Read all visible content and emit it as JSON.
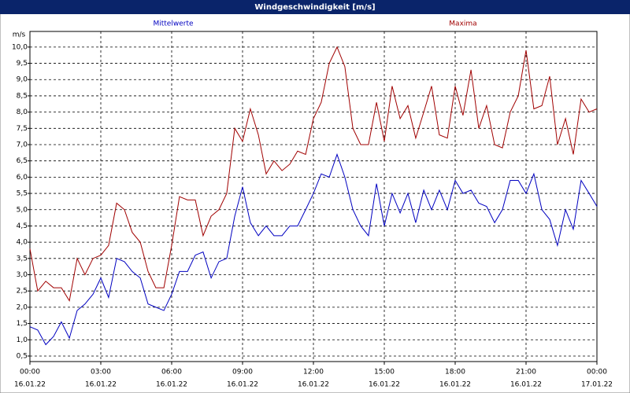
{
  "chart_data": {
    "type": "line",
    "title": "Windgeschwindigkeit [m/s]",
    "y_label": "m/s",
    "grid": true,
    "xlim": [
      0,
      24
    ],
    "xticks": [
      {
        "value": 0,
        "label": "00:00"
      },
      {
        "value": 3,
        "label": "03:00"
      },
      {
        "value": 6,
        "label": "06:00"
      },
      {
        "value": 9,
        "label": "09:00"
      },
      {
        "value": 12,
        "label": "12:00"
      },
      {
        "value": 15,
        "label": "15:00"
      },
      {
        "value": 18,
        "label": "18:00"
      },
      {
        "value": 21,
        "label": "21:00"
      },
      {
        "value": 24,
        "label": "00:00"
      }
    ],
    "xtick_dates": [
      "16.01.22",
      "16.01.22",
      "16.01.22",
      "16.01.22",
      "16.01.22",
      "16.01.22",
      "16.01.22",
      "16.01.22",
      "17.01.22"
    ],
    "ylim": [
      0.33,
      10.48
    ],
    "yticks": [
      {
        "value": 0.5,
        "label": "0,5"
      },
      {
        "value": 1.0,
        "label": "1,0"
      },
      {
        "value": 1.5,
        "label": "1,5"
      },
      {
        "value": 2.0,
        "label": "2,0"
      },
      {
        "value": 2.5,
        "label": "2,5"
      },
      {
        "value": 3.0,
        "label": "3,0"
      },
      {
        "value": 3.5,
        "label": "3,5"
      },
      {
        "value": 4.0,
        "label": "4,0"
      },
      {
        "value": 4.5,
        "label": "4,5"
      },
      {
        "value": 5.0,
        "label": "5,0"
      },
      {
        "value": 5.5,
        "label": "5,5"
      },
      {
        "value": 6.0,
        "label": "6,0"
      },
      {
        "value": 6.5,
        "label": "6,5"
      },
      {
        "value": 7.0,
        "label": "7,0"
      },
      {
        "value": 7.5,
        "label": "7,5"
      },
      {
        "value": 8.0,
        "label": "8,0"
      },
      {
        "value": 8.5,
        "label": "8,5"
      },
      {
        "value": 9.0,
        "label": "9,0"
      },
      {
        "value": 9.5,
        "label": "9,5"
      },
      {
        "value": 10.0,
        "label": "10,0"
      }
    ],
    "x": [
      0,
      0.33,
      0.67,
      1,
      1.33,
      1.67,
      2,
      2.33,
      2.67,
      3,
      3.33,
      3.67,
      4,
      4.33,
      4.67,
      5,
      5.33,
      5.67,
      6,
      6.33,
      6.67,
      7,
      7.33,
      7.67,
      8,
      8.33,
      8.67,
      9,
      9.33,
      9.67,
      10,
      10.33,
      10.67,
      11,
      11.33,
      11.67,
      12,
      12.33,
      12.67,
      13,
      13.33,
      13.67,
      14,
      14.33,
      14.67,
      15,
      15.33,
      15.67,
      16,
      16.33,
      16.67,
      17,
      17.33,
      17.67,
      18,
      18.33,
      18.67,
      19,
      19.33,
      19.67,
      20,
      20.33,
      20.67,
      21,
      21.33,
      21.67,
      22,
      22.33,
      22.67,
      23,
      23.33,
      23.67,
      24
    ],
    "series": [
      {
        "name": "Mittelwerte",
        "color": "#0000c0",
        "values": [
          1.4,
          1.3,
          0.85,
          1.1,
          1.55,
          1.05,
          1.9,
          2.1,
          2.4,
          2.9,
          2.3,
          3.5,
          3.4,
          3.1,
          2.9,
          2.1,
          2.0,
          1.9,
          2.4,
          3.1,
          3.1,
          3.6,
          3.7,
          2.9,
          3.4,
          3.5,
          4.8,
          5.7,
          4.6,
          4.2,
          4.5,
          4.2,
          4.2,
          4.5,
          4.5,
          5.0,
          5.5,
          6.1,
          6.0,
          6.7,
          6.0,
          5.0,
          4.5,
          4.2,
          5.8,
          4.5,
          5.5,
          4.9,
          5.5,
          4.6,
          5.6,
          5.0,
          5.6,
          5.0,
          5.9,
          5.5,
          5.6,
          5.2,
          5.1,
          4.6,
          5.0,
          5.9,
          5.9,
          5.5,
          6.1,
          5.0,
          4.7,
          3.9,
          5.0,
          4.4,
          5.9,
          5.5,
          5.1
        ]
      },
      {
        "name": "Maxima",
        "color": "#a00000",
        "values": [
          3.8,
          2.5,
          2.8,
          2.6,
          2.6,
          2.2,
          3.5,
          3.0,
          3.5,
          3.6,
          3.9,
          5.2,
          5.0,
          4.3,
          4.0,
          3.1,
          2.6,
          2.6,
          3.9,
          5.4,
          5.3,
          5.3,
          4.2,
          4.8,
          5.0,
          5.5,
          7.5,
          7.1,
          8.1,
          7.3,
          6.1,
          6.5,
          6.2,
          6.4,
          6.8,
          6.7,
          7.8,
          8.3,
          9.5,
          10.0,
          9.4,
          7.5,
          7.0,
          7.0,
          8.3,
          7.1,
          8.8,
          7.8,
          8.2,
          7.2,
          8.0,
          8.8,
          7.3,
          7.2,
          8.8,
          7.9,
          9.3,
          7.5,
          8.2,
          7.0,
          6.9,
          8.0,
          8.5,
          9.9,
          8.1,
          8.2,
          9.1,
          7.0,
          7.8,
          6.7,
          8.4,
          8.0,
          8.1
        ]
      }
    ]
  }
}
